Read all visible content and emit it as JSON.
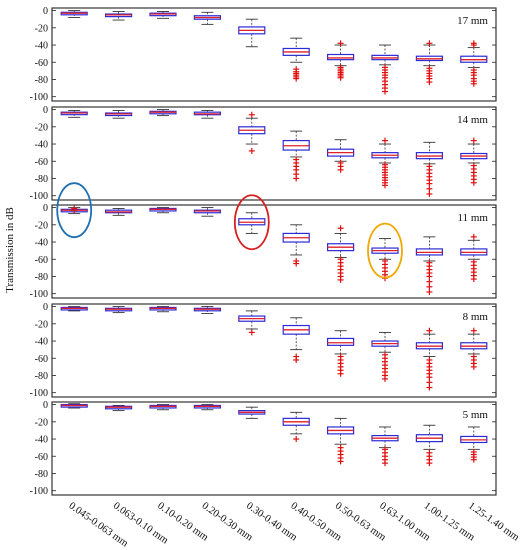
{
  "chart_data": {
    "type": "box",
    "ylabel": "Transmission in dB",
    "yticks": [
      0,
      -20,
      -40,
      -60,
      -80,
      -100
    ],
    "ylim": [
      -105,
      3
    ],
    "categories": [
      "0.045-0.063 mm",
      "0.063-0.10 mm",
      "0.10-0.20 mm",
      "0.20-0.30 mm",
      "0.30-0.40 mm",
      "0.40-0.50 mm",
      "0.50-0.63 mm",
      "0.63-1.00 mm",
      "1.00-1.25 mm",
      "1.25-1.40 mm"
    ],
    "colors": {
      "box": "#2b2bd6",
      "median": "#e0202a",
      "whisker": "#333333",
      "outlier": "#e01010",
      "circle_blue": "#1f6fb0",
      "circle_red": "#d62020",
      "circle_orange": "#f0a800"
    },
    "panels": [
      {
        "label": "17 mm",
        "boxes": [
          {
            "q1": -4,
            "median": -3,
            "q3": -2,
            "lo": -8,
            "hi": 0,
            "outliers": []
          },
          {
            "q1": -7,
            "median": -5,
            "q3": -4,
            "lo": -11,
            "hi": -1,
            "outliers": []
          },
          {
            "q1": -5,
            "median": -4,
            "q3": -3,
            "lo": -9,
            "hi": -1,
            "outliers": []
          },
          {
            "q1": -10,
            "median": -8,
            "q3": -6,
            "lo": -16,
            "hi": -2,
            "outliers": []
          },
          {
            "q1": -27,
            "median": -23,
            "q3": -19,
            "lo": -42,
            "hi": -10,
            "outliers": []
          },
          {
            "q1": -52,
            "median": -48,
            "q3": -44,
            "lo": -60,
            "hi": -32,
            "outliers": [
              -68,
              -71,
              -73,
              -75,
              -77,
              -79
            ]
          },
          {
            "q1": -57,
            "median": -55,
            "q3": -51,
            "lo": -64,
            "hi": -40,
            "outliers": [
              -38,
              -66,
              -68,
              -70,
              -72,
              -74,
              -76,
              -78
            ]
          },
          {
            "q1": -57,
            "median": -55,
            "q3": -52,
            "lo": -63,
            "hi": -40,
            "outliers": [
              -66,
              -69,
              -72,
              -75,
              -78,
              -82,
              -86,
              -90,
              -94
            ]
          },
          {
            "q1": -58,
            "median": -56,
            "q3": -53,
            "lo": -64,
            "hi": -40,
            "outliers": [
              -38,
              -67,
              -70,
              -73,
              -76,
              -79,
              -83
            ]
          },
          {
            "q1": -60,
            "median": -57,
            "q3": -53,
            "lo": -66,
            "hi": -43,
            "outliers": [
              -38,
              -40,
              -69,
              -72,
              -75,
              -79,
              -82,
              -85
            ]
          }
        ]
      },
      {
        "label": "14 mm",
        "boxes": [
          {
            "q1": -5,
            "median": -4,
            "q3": -3,
            "lo": -9,
            "hi": -1,
            "outliers": []
          },
          {
            "q1": -6,
            "median": -5,
            "q3": -4,
            "lo": -10,
            "hi": -1,
            "outliers": []
          },
          {
            "q1": -4,
            "median": -3,
            "q3": -2,
            "lo": -7,
            "hi": 0,
            "outliers": []
          },
          {
            "q1": -6,
            "median": -5,
            "q3": -3,
            "lo": -10,
            "hi": -1,
            "outliers": []
          },
          {
            "q1": -28,
            "median": -24,
            "q3": -20,
            "lo": -40,
            "hi": -10,
            "outliers": [
              -6,
              -48
            ]
          },
          {
            "q1": -47,
            "median": -42,
            "q3": -36,
            "lo": -55,
            "hi": -25,
            "outliers": [
              -58,
              -62,
              -66,
              -70,
              -75,
              -80
            ]
          },
          {
            "q1": -54,
            "median": -50,
            "q3": -46,
            "lo": -60,
            "hi": -35,
            "outliers": [
              -62,
              -66,
              -70
            ]
          },
          {
            "q1": -56,
            "median": -53,
            "q3": -50,
            "lo": -62,
            "hi": -40,
            "outliers": [
              -36,
              -64,
              -67,
              -70,
              -73,
              -76,
              -79,
              -82,
              -85,
              -88
            ]
          },
          {
            "q1": -57,
            "median": -54,
            "q3": -50,
            "lo": -63,
            "hi": -38,
            "outliers": [
              -66,
              -70,
              -74,
              -78,
              -82,
              -86,
              -92,
              -98
            ]
          },
          {
            "q1": -57,
            "median": -54,
            "q3": -51,
            "lo": -62,
            "hi": -40,
            "outliers": [
              -36,
              -65,
              -69,
              -73,
              -77,
              -81,
              -85
            ]
          }
        ]
      },
      {
        "label": "11 mm",
        "boxes": [
          {
            "q1": -4,
            "median": -3,
            "q3": -2,
            "lo": -7,
            "hi": 0,
            "outliers": [
              -1,
              -3
            ]
          },
          {
            "q1": -6,
            "median": -5,
            "q3": -3,
            "lo": -9,
            "hi": -1,
            "outliers": []
          },
          {
            "q1": -3,
            "median": -2,
            "q3": -1,
            "lo": -6,
            "hi": 0,
            "outliers": []
          },
          {
            "q1": -6,
            "median": -4,
            "q3": -3,
            "lo": -10,
            "hi": 0,
            "outliers": []
          },
          {
            "q1": -20,
            "median": -17,
            "q3": -13,
            "lo": -30,
            "hi": -6,
            "outliers": []
          },
          {
            "q1": -40,
            "median": -35,
            "q3": -30,
            "lo": -55,
            "hi": -20,
            "outliers": [
              -62,
              -65
            ]
          },
          {
            "q1": -50,
            "median": -46,
            "q3": -42,
            "lo": -58,
            "hi": -30,
            "outliers": [
              -24,
              -60,
              -64,
              -68,
              -72,
              -76,
              -80,
              -84
            ]
          },
          {
            "q1": -53,
            "median": -50,
            "q3": -47,
            "lo": -60,
            "hi": -36,
            "outliers": [
              -62,
              -66,
              -70,
              -74,
              -78,
              -82
            ]
          },
          {
            "q1": -55,
            "median": -52,
            "q3": -48,
            "lo": -62,
            "hi": -34,
            "outliers": [
              -64,
              -68,
              -72,
              -76,
              -80,
              -86,
              -92,
              -98
            ]
          },
          {
            "q1": -55,
            "median": -52,
            "q3": -48,
            "lo": -60,
            "hi": -38,
            "outliers": [
              -34,
              -63,
              -67,
              -71,
              -75,
              -79,
              -83
            ]
          }
        ]
      },
      {
        "label": "8 mm",
        "boxes": [
          {
            "q1": -3,
            "median": -2,
            "q3": -1,
            "lo": -5,
            "hi": 0,
            "outliers": []
          },
          {
            "q1": -4,
            "median": -3,
            "q3": -2,
            "lo": -7,
            "hi": 0,
            "outliers": []
          },
          {
            "q1": -3,
            "median": -2,
            "q3": -1,
            "lo": -6,
            "hi": 0,
            "outliers": []
          },
          {
            "q1": -4,
            "median": -3,
            "q3": -2,
            "lo": -8,
            "hi": 0,
            "outliers": []
          },
          {
            "q1": -17,
            "median": -14,
            "q3": -11,
            "lo": -26,
            "hi": -5,
            "outliers": [
              -30
            ]
          },
          {
            "q1": -32,
            "median": -27,
            "q3": -22,
            "lo": -50,
            "hi": -13,
            "outliers": [
              -58,
              -62
            ]
          },
          {
            "q1": -45,
            "median": -42,
            "q3": -37,
            "lo": -55,
            "hi": -28,
            "outliers": [
              -58,
              -62,
              -66,
              -70,
              -74,
              -78
            ]
          },
          {
            "q1": -46,
            "median": -43,
            "q3": -40,
            "lo": -53,
            "hi": -30,
            "outliers": [
              -56,
              -60,
              -64,
              -68,
              -72,
              -76,
              -80,
              -84
            ]
          },
          {
            "q1": -49,
            "median": -46,
            "q3": -42,
            "lo": -58,
            "hi": -32,
            "outliers": [
              -28,
              -62,
              -66,
              -70,
              -74,
              -78,
              -82,
              -88,
              -94
            ]
          },
          {
            "q1": -49,
            "median": -46,
            "q3": -42,
            "lo": -55,
            "hi": -32,
            "outliers": [
              -28,
              -58,
              -62,
              -66,
              -70
            ]
          }
        ]
      },
      {
        "label": "5 mm",
        "boxes": [
          {
            "q1": -2,
            "median": -1,
            "q3": 0,
            "lo": -4,
            "hi": 1,
            "outliers": []
          },
          {
            "q1": -4,
            "median": -3,
            "q3": -2,
            "lo": -7,
            "hi": -1,
            "outliers": []
          },
          {
            "q1": -3,
            "median": -2,
            "q3": -1,
            "lo": -6,
            "hi": 0,
            "outliers": []
          },
          {
            "q1": -3,
            "median": -2,
            "q3": -1,
            "lo": -6,
            "hi": 0,
            "outliers": []
          },
          {
            "q1": -11,
            "median": -9,
            "q3": -7,
            "lo": -16,
            "hi": -3,
            "outliers": []
          },
          {
            "q1": -24,
            "median": -20,
            "q3": -16,
            "lo": -34,
            "hi": -9,
            "outliers": [
              -40
            ]
          },
          {
            "q1": -34,
            "median": -30,
            "q3": -26,
            "lo": -46,
            "hi": -16,
            "outliers": [
              -50,
              -54,
              -58,
              -62,
              -66
            ]
          },
          {
            "q1": -42,
            "median": -39,
            "q3": -36,
            "lo": -50,
            "hi": -26,
            "outliers": [
              -52,
              -56,
              -60,
              -64,
              -68
            ]
          },
          {
            "q1": -43,
            "median": -39,
            "q3": -35,
            "lo": -52,
            "hi": -24,
            "outliers": [
              -56,
              -60,
              -64,
              -68
            ]
          },
          {
            "q1": -44,
            "median": -41,
            "q3": -37,
            "lo": -52,
            "hi": -26,
            "outliers": [
              -55,
              -58,
              -61,
              -64
            ]
          }
        ]
      }
    ],
    "highlights": [
      {
        "panel": 2,
        "category": 0,
        "color": "circle_blue"
      },
      {
        "panel": 2,
        "category": 4,
        "color": "circle_red"
      },
      {
        "panel": 2,
        "category": 7,
        "color": "circle_orange"
      }
    ]
  }
}
